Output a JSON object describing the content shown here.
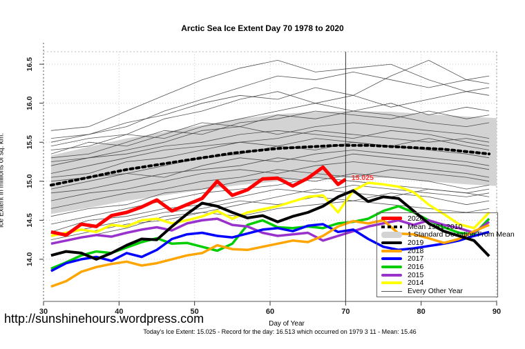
{
  "title": "Arctic Sea Ice Extent Day 70 1978 to 2020",
  "url_text": "http://sunshinehours.wordpress.com",
  "footer_caption": "Today's Ice Extent: 15.025  - Record for the day: 16.513 which occurred on 1979 3 11  - Mean: 15.46",
  "annotation": {
    "label": "15.025",
    "day": 70.5,
    "value": 15.04,
    "color": "#ff3333"
  },
  "marker": {
    "day": 70
  },
  "colors": {
    "red": "#ff0000",
    "black": "#000000",
    "orange": "#ffa500",
    "blue": "#0000ff",
    "green": "#00cd00",
    "purple": "#9932cc",
    "yellow": "#ffff00",
    "band": "#d3d3d3",
    "thin_line": "#3d3d3d",
    "grid": "#c8c8c8",
    "axis": "#555555"
  },
  "legend": {
    "entries": [
      {
        "label": "2020",
        "swatch": "line",
        "color": "#ff0000",
        "thickness": 5
      },
      {
        "label": "Mean 1981-2010",
        "swatch": "dashed",
        "color": "#000000",
        "thickness": 4
      },
      {
        "label": "1 Standard Deviation From Mean",
        "swatch": "band",
        "color": "#d3d3d3"
      },
      {
        "label": "2019",
        "swatch": "line",
        "color": "#000000",
        "thickness": 4
      },
      {
        "label": "2018",
        "swatch": "line",
        "color": "#ffa500",
        "thickness": 4
      },
      {
        "label": "2017",
        "swatch": "line",
        "color": "#0000ff",
        "thickness": 4
      },
      {
        "label": "2016",
        "swatch": "line",
        "color": "#00cd00",
        "thickness": 4
      },
      {
        "label": "2015",
        "swatch": "line",
        "color": "#9932cc",
        "thickness": 4
      },
      {
        "label": "2014",
        "swatch": "line",
        "color": "#ffff00",
        "thickness": 4
      },
      {
        "label": "Every Other Year",
        "swatch": "thin",
        "color": "#555555",
        "thickness": 1
      }
    ]
  },
  "chart_data": {
    "type": "line",
    "title": "Arctic Sea Ice Extent Day 70 1978 to 2020",
    "xlabel": "Day of Year",
    "ylabel": "Ice Extent in millions of sq. km.",
    "xlim": [
      30,
      90
    ],
    "ylim": [
      13.46,
      16.66
    ],
    "xticks": [
      30,
      40,
      50,
      60,
      70,
      80,
      90
    ],
    "yticks": [
      14.0,
      14.5,
      15.0,
      15.5,
      16.0,
      16.5
    ],
    "grid": "dotted",
    "legend_position": "bottom-right",
    "days": [
      31,
      33,
      35,
      37,
      39,
      41,
      43,
      45,
      47,
      49,
      51,
      53,
      55,
      57,
      59,
      61,
      63,
      65,
      67,
      69,
      71,
      73,
      75,
      77,
      79,
      81,
      83,
      85,
      87,
      89
    ],
    "series": [
      {
        "name": "2016",
        "color": "#00cd00",
        "width": 3.5,
        "values": [
          13.88,
          13.96,
          14.05,
          14.1,
          14.08,
          14.15,
          14.22,
          14.27,
          14.2,
          14.21,
          14.16,
          14.11,
          14.2,
          14.44,
          14.5,
          14.41,
          14.4,
          14.42,
          14.4,
          14.46,
          14.48,
          14.52,
          14.62,
          14.68,
          14.6,
          14.5,
          14.41,
          14.34,
          14.32,
          14.52
        ]
      },
      {
        "name": "2015",
        "color": "#9932cc",
        "width": 3.5,
        "values": [
          14.2,
          14.24,
          14.28,
          14.31,
          14.29,
          14.34,
          14.38,
          14.41,
          14.37,
          14.46,
          14.5,
          14.52,
          14.44,
          14.42,
          14.34,
          14.3,
          14.32,
          14.34,
          14.24,
          14.3,
          14.36,
          14.42,
          14.46,
          14.5,
          14.44,
          14.5,
          14.44,
          14.4,
          14.34,
          14.48
        ]
      },
      {
        "name": "2017",
        "color": "#0000ff",
        "width": 3.5,
        "values": [
          13.85,
          13.95,
          14.0,
          14.03,
          13.98,
          14.08,
          14.03,
          14.12,
          14.26,
          14.32,
          14.34,
          14.3,
          14.28,
          14.33,
          14.38,
          14.4,
          14.36,
          14.43,
          14.45,
          14.35,
          14.38,
          14.26,
          14.16,
          14.12,
          14.14,
          14.17,
          14.2,
          14.24,
          14.3,
          14.35
        ]
      },
      {
        "name": "2018",
        "color": "#ffa500",
        "width": 3.5,
        "values": [
          13.65,
          13.72,
          13.84,
          13.9,
          13.94,
          13.97,
          13.92,
          13.95,
          14.0,
          14.05,
          14.08,
          14.18,
          14.13,
          14.12,
          14.16,
          14.2,
          14.24,
          14.22,
          14.3,
          14.42,
          14.49,
          14.46,
          14.5,
          14.33,
          14.32,
          14.27,
          14.21,
          14.26,
          14.36,
          14.44
        ]
      },
      {
        "name": "2014",
        "color": "#ffff00",
        "width": 3.5,
        "values": [
          14.3,
          14.34,
          14.38,
          14.35,
          14.44,
          14.42,
          14.5,
          14.52,
          14.46,
          14.5,
          14.55,
          14.62,
          14.52,
          14.6,
          14.64,
          14.68,
          14.74,
          14.8,
          14.82,
          14.6,
          14.88,
          14.98,
          14.96,
          14.93,
          14.86,
          14.7,
          14.58,
          14.45,
          14.4,
          14.6
        ]
      },
      {
        "name": "2019",
        "color": "#000000",
        "width": 4,
        "values": [
          14.05,
          14.1,
          14.08,
          14.0,
          14.08,
          14.18,
          14.26,
          14.25,
          14.42,
          14.58,
          14.72,
          14.68,
          14.6,
          14.53,
          14.56,
          14.48,
          14.55,
          14.6,
          14.68,
          14.8,
          14.88,
          14.74,
          14.8,
          14.78,
          14.62,
          14.46,
          14.36,
          14.3,
          14.24,
          14.04
        ]
      }
    ],
    "series_2020": {
      "name": "2020",
      "color": "#ff0000",
      "width": 5,
      "days": [
        31,
        33,
        35,
        37,
        39,
        41,
        43,
        45,
        47,
        49,
        51,
        53,
        55,
        57,
        59,
        61,
        63,
        65,
        67,
        69,
        70
      ],
      "values": [
        14.35,
        14.31,
        14.45,
        14.42,
        14.56,
        14.6,
        14.67,
        14.76,
        14.62,
        14.7,
        14.78,
        15.0,
        14.82,
        14.89,
        15.03,
        15.04,
        14.94,
        15.04,
        15.18,
        14.96,
        15.025
      ]
    },
    "mean_series": {
      "name": "Mean 1981-2010",
      "color": "#000000",
      "style": "dashed",
      "width": 4,
      "values": [
        14.95,
        14.99,
        15.03,
        15.07,
        15.11,
        15.15,
        15.18,
        15.21,
        15.24,
        15.27,
        15.3,
        15.33,
        15.36,
        15.38,
        15.4,
        15.42,
        15.43,
        15.44,
        15.45,
        15.46,
        15.46,
        15.46,
        15.45,
        15.44,
        15.43,
        15.42,
        15.41,
        15.39,
        15.37,
        15.35
      ]
    },
    "std_band": {
      "name": "1 Standard Deviation From Mean",
      "color": "#d3d3d3",
      "days": [
        31,
        36,
        41,
        46,
        51,
        56,
        61,
        66,
        71,
        76,
        81,
        86,
        90
      ],
      "upper": [
        15.33,
        15.44,
        15.55,
        15.63,
        15.72,
        15.8,
        15.86,
        15.89,
        15.9,
        15.89,
        15.86,
        15.83,
        15.81
      ],
      "lower": [
        14.58,
        14.66,
        14.75,
        14.82,
        14.89,
        14.95,
        15.0,
        15.03,
        15.05,
        15.04,
        15.0,
        14.96,
        14.94
      ]
    },
    "background_series": {
      "name": "Every Other Year",
      "color": "#3d3d3d",
      "width": 0.8,
      "days": [
        31,
        36,
        41,
        46,
        51,
        56,
        61,
        66,
        71,
        76,
        81,
        86,
        89
      ],
      "lines": [
        [
          15.65,
          15.7,
          15.9,
          16.1,
          16.3,
          16.45,
          16.55,
          16.4,
          16.45,
          16.5,
          16.3,
          16.15,
          16.2
        ],
        [
          15.55,
          15.6,
          15.75,
          15.85,
          16.0,
          16.1,
          16.05,
          16.2,
          16.1,
          16.35,
          16.55,
          16.3,
          16.35
        ],
        [
          15.5,
          15.6,
          15.7,
          15.9,
          16.05,
          16.2,
          16.35,
          16.3,
          16.4,
          16.3,
          16.2,
          16.3,
          16.25
        ],
        [
          15.45,
          15.55,
          15.6,
          15.8,
          15.9,
          16.05,
          16.15,
          16.0,
          15.9,
          16.0,
          15.85,
          15.95,
          15.9
        ],
        [
          15.4,
          15.45,
          15.6,
          15.55,
          15.7,
          15.8,
          15.9,
          16.0,
          16.1,
          15.95,
          16.05,
          16.15,
          16.1
        ],
        [
          15.35,
          15.5,
          15.45,
          15.6,
          15.75,
          15.7,
          15.85,
          15.8,
          15.9,
          15.85,
          15.75,
          15.7,
          15.75
        ],
        [
          15.3,
          15.35,
          15.5,
          15.65,
          15.6,
          15.75,
          15.8,
          15.9,
          15.85,
          15.8,
          15.9,
          15.8,
          15.85
        ],
        [
          15.25,
          15.3,
          15.4,
          15.5,
          15.65,
          15.7,
          15.6,
          15.7,
          15.75,
          15.7,
          15.65,
          15.6,
          15.55
        ],
        [
          15.2,
          15.3,
          15.35,
          15.45,
          15.5,
          15.6,
          15.65,
          15.6,
          15.55,
          15.65,
          15.6,
          15.5,
          15.45
        ],
        [
          15.1,
          15.2,
          15.3,
          15.4,
          15.45,
          15.5,
          15.55,
          15.65,
          15.6,
          15.55,
          15.5,
          15.55,
          15.5
        ],
        [
          15.05,
          15.1,
          15.25,
          15.3,
          15.4,
          15.5,
          15.45,
          15.55,
          15.5,
          15.45,
          15.55,
          15.45,
          15.4
        ],
        [
          15.0,
          15.05,
          15.1,
          15.2,
          15.3,
          15.35,
          15.45,
          15.4,
          15.5,
          15.45,
          15.4,
          15.35,
          15.3
        ],
        [
          14.9,
          15.0,
          15.1,
          15.05,
          15.2,
          15.3,
          15.25,
          15.35,
          15.4,
          15.35,
          15.3,
          15.25,
          15.2
        ],
        [
          14.85,
          14.9,
          15.0,
          15.1,
          15.15,
          15.2,
          15.3,
          15.25,
          15.35,
          15.3,
          15.25,
          15.2,
          15.15
        ],
        [
          14.75,
          14.85,
          14.9,
          15.0,
          15.1,
          15.15,
          15.1,
          15.2,
          15.25,
          15.2,
          15.15,
          15.1,
          15.05
        ],
        [
          14.65,
          14.75,
          14.85,
          14.9,
          15.0,
          15.05,
          15.15,
          15.1,
          15.05,
          15.15,
          15.1,
          15.05,
          15.0
        ],
        [
          14.55,
          14.65,
          14.7,
          14.85,
          14.9,
          15.0,
          15.05,
          15.0,
          15.1,
          15.05,
          15.0,
          14.9,
          14.95
        ],
        [
          14.45,
          14.55,
          14.65,
          14.75,
          14.85,
          14.9,
          14.95,
          15.05,
          15.0,
          14.95,
          14.9,
          14.85,
          14.9
        ],
        [
          14.35,
          14.5,
          14.55,
          14.65,
          14.7,
          14.8,
          14.9,
          14.85,
          14.95,
          14.9,
          14.85,
          14.8,
          14.85
        ],
        [
          14.3,
          14.4,
          14.5,
          14.6,
          14.65,
          14.75,
          14.7,
          14.8,
          14.75,
          14.85,
          14.8,
          14.7,
          14.75
        ],
        [
          14.25,
          14.35,
          14.45,
          14.5,
          14.6,
          14.55,
          14.65,
          14.7,
          14.75,
          14.7,
          14.65,
          14.6,
          14.65
        ],
        [
          14.2,
          14.3,
          14.4,
          14.55,
          14.6,
          14.7,
          14.8,
          14.9,
          14.85,
          14.8,
          14.9,
          14.85,
          14.8
        ]
      ]
    }
  }
}
